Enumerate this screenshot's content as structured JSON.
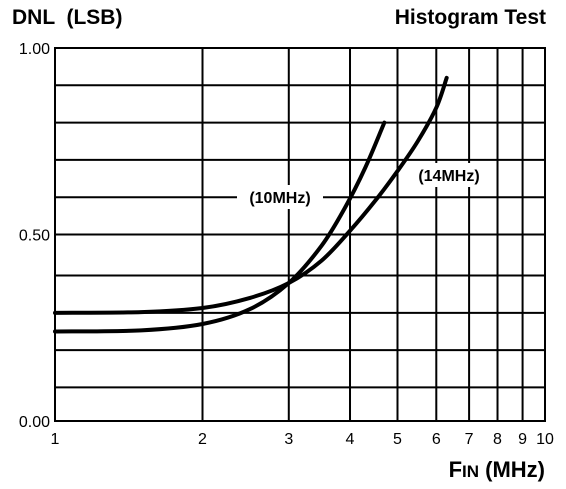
{
  "chart_data": {
    "type": "line",
    "title": "Histogram Test",
    "ylabel": "DNL  (LSB)",
    "xlabel": {
      "main": "F",
      "sub": "IN",
      "unit": " (MHz)"
    },
    "x_scale": "log",
    "xlim": [
      1,
      10
    ],
    "ylim": [
      0,
      1
    ],
    "grid": true,
    "x_ticks": [
      1,
      2,
      3,
      4,
      5,
      6,
      7,
      8,
      9,
      10
    ],
    "x_tick_labels": [
      "1",
      "2",
      "3",
      "4",
      "5",
      "6",
      "7",
      "8",
      "9",
      "10"
    ],
    "y_ticks": [
      0,
      0.5,
      1
    ],
    "y_tick_labels": [
      "0.00",
      "0.50",
      "1.00"
    ],
    "y_gridlines": [
      0,
      0.09,
      0.19,
      0.29,
      0.39,
      0.5,
      0.6,
      0.7,
      0.8,
      0.9,
      1
    ],
    "series": [
      {
        "name": "(10MHz)",
        "x": [
          1,
          1.5,
          2,
          2.5,
          3,
          3.5,
          3.9,
          4.3,
          4.7
        ],
        "y": [
          0.24,
          0.243,
          0.26,
          0.3,
          0.37,
          0.47,
          0.57,
          0.68,
          0.8
        ]
      },
      {
        "name": "(14MHz)",
        "x": [
          1,
          1.5,
          2,
          2.5,
          3,
          3.5,
          4,
          4.5,
          5,
          5.5,
          6,
          6.3
        ],
        "y": [
          0.29,
          0.292,
          0.303,
          0.33,
          0.37,
          0.43,
          0.51,
          0.59,
          0.67,
          0.75,
          0.84,
          0.92
        ]
      }
    ]
  }
}
